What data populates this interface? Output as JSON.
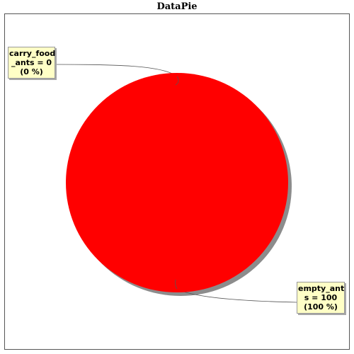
{
  "chart_data": {
    "type": "pie",
    "title": "DataPie",
    "slices": [
      {
        "name": "carry_food_ants",
        "value": 0,
        "percent": "0 %",
        "label_lines": [
          "carry_food",
          "_ants = 0",
          "(0 %)"
        ],
        "color": "#000000"
      },
      {
        "name": "empty_ants",
        "value": 100,
        "percent": "100 %",
        "label_lines": [
          "empty_ant",
          "s = 100",
          "(100 %)"
        ],
        "color": "#ff0000"
      }
    ],
    "colors": {
      "label_background": "#ffffc6",
      "shadow": "#8c8c8c",
      "leader_line": "#555555"
    }
  }
}
